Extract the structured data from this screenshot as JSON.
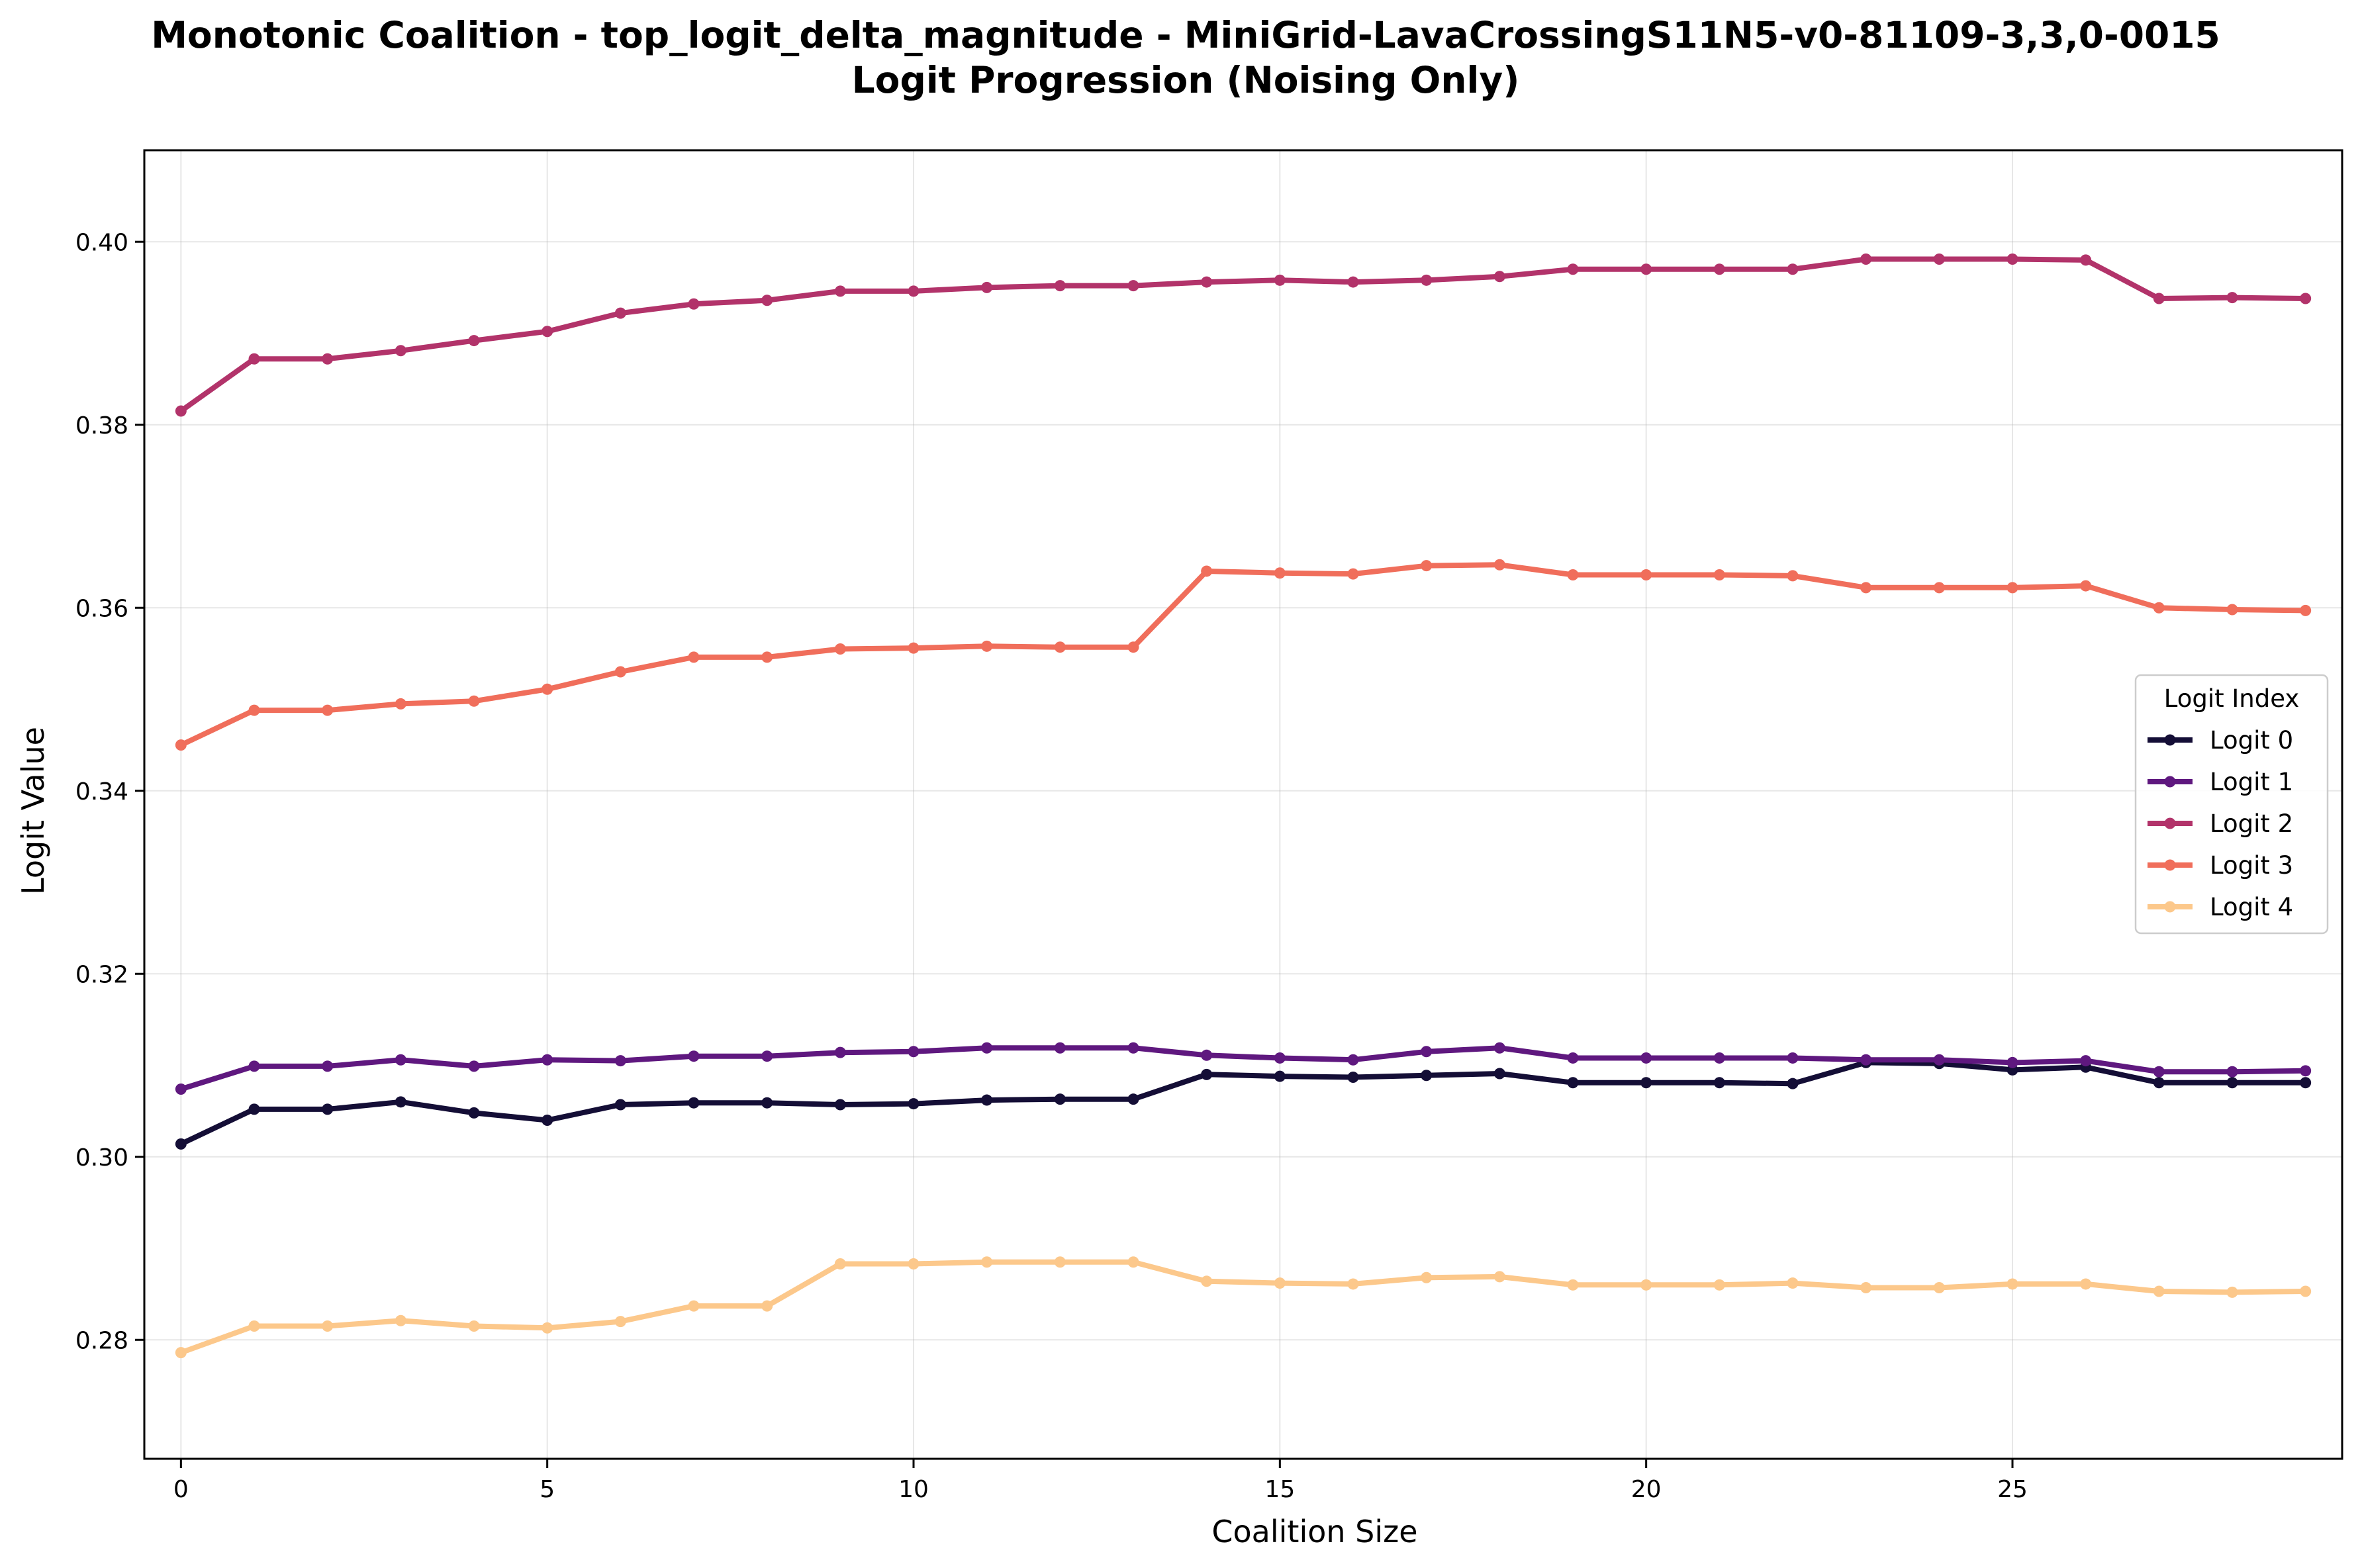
{
  "chart_data": {
    "type": "line",
    "title": "Monotonic Coalition - top_logit_delta_magnitude - MiniGrid-LavaCrossingS11N5-v0-81109-3,3,0-0015",
    "subtitle": "Logit Progression (Noising Only)",
    "xlabel": "Coalition Size",
    "ylabel": "Logit Value",
    "xlim": [
      -0.5,
      29.5
    ],
    "ylim": [
      0.267,
      0.41
    ],
    "xticks": [
      0,
      5,
      10,
      15,
      20,
      25
    ],
    "xtick_labels": [
      "0",
      "5",
      "10",
      "15",
      "20",
      "25"
    ],
    "yticks": [
      0.28,
      0.3,
      0.32,
      0.34,
      0.36,
      0.38,
      0.4
    ],
    "ytick_labels": [
      "0.28",
      "0.30",
      "0.32",
      "0.34",
      "0.36",
      "0.38",
      "0.40"
    ],
    "grid": true,
    "legend": {
      "title": "Logit Index",
      "placement": "center-right"
    },
    "x": [
      0,
      1,
      2,
      3,
      4,
      5,
      6,
      7,
      8,
      9,
      10,
      11,
      12,
      13,
      14,
      15,
      16,
      17,
      18,
      19,
      20,
      21,
      22,
      23,
      24,
      25,
      26,
      27,
      28,
      29
    ],
    "series": [
      {
        "name": "Logit 0",
        "color": "#140e36",
        "values": [
          0.3014,
          0.3052,
          0.3052,
          0.306,
          0.3048,
          0.304,
          0.3057,
          0.3059,
          0.3059,
          0.3057,
          0.3058,
          0.3062,
          0.3063,
          0.3063,
          0.309,
          0.3088,
          0.3087,
          0.3089,
          0.3091,
          0.3081,
          0.3081,
          0.3081,
          0.308,
          0.3103,
          0.3102,
          0.3095,
          0.3098,
          0.3081,
          0.3081,
          0.3081
        ]
      },
      {
        "name": "Logit 1",
        "color": "#5f187f",
        "values": [
          0.3074,
          0.3099,
          0.3099,
          0.3106,
          0.3099,
          0.3106,
          0.3105,
          0.311,
          0.311,
          0.3114,
          0.3115,
          0.3119,
          0.3119,
          0.3119,
          0.3111,
          0.3108,
          0.3106,
          0.3115,
          0.3119,
          0.3108,
          0.3108,
          0.3108,
          0.3108,
          0.3106,
          0.3106,
          0.3103,
          0.3105,
          0.3093,
          0.3093,
          0.3094
        ]
      },
      {
        "name": "Logit 2",
        "color": "#b2336a",
        "values": [
          0.3815,
          0.3872,
          0.3872,
          0.3881,
          0.3892,
          0.3902,
          0.3922,
          0.3932,
          0.3936,
          0.3946,
          0.3946,
          0.395,
          0.3952,
          0.3952,
          0.3956,
          0.3958,
          0.3956,
          0.3958,
          0.3962,
          0.397,
          0.397,
          0.397,
          0.397,
          0.3981,
          0.3981,
          0.3981,
          0.398,
          0.3938,
          0.3939,
          0.3938
        ]
      },
      {
        "name": "Logit 3",
        "color": "#f06e5b",
        "values": [
          0.345,
          0.3488,
          0.3488,
          0.3495,
          0.3498,
          0.3511,
          0.353,
          0.3546,
          0.3546,
          0.3555,
          0.3556,
          0.3558,
          0.3557,
          0.3557,
          0.364,
          0.3638,
          0.3637,
          0.3646,
          0.3647,
          0.3636,
          0.3636,
          0.3636,
          0.3635,
          0.3622,
          0.3622,
          0.3622,
          0.3624,
          0.36,
          0.3598,
          0.3597
        ]
      },
      {
        "name": "Logit 4",
        "color": "#fcc88b",
        "values": [
          0.2786,
          0.2815,
          0.2815,
          0.2821,
          0.2815,
          0.2813,
          0.282,
          0.2837,
          0.2837,
          0.2883,
          0.2883,
          0.2885,
          0.2885,
          0.2885,
          0.2864,
          0.2862,
          0.2861,
          0.2868,
          0.2869,
          0.286,
          0.286,
          0.286,
          0.2862,
          0.2857,
          0.2857,
          0.2861,
          0.2861,
          0.2853,
          0.2852,
          0.2853
        ]
      }
    ]
  }
}
